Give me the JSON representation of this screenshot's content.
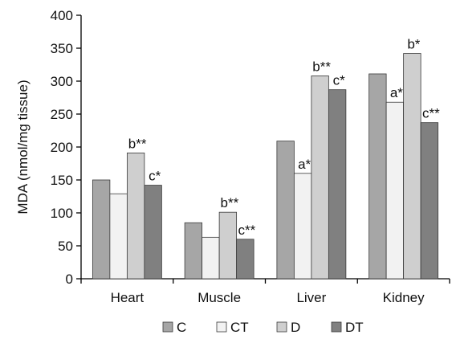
{
  "chart_data": {
    "type": "bar",
    "title": "",
    "xlabel": "",
    "ylabel": "MDA (nmol/mg tissue)",
    "ylim": [
      0,
      400
    ],
    "yticks": [
      0,
      50,
      100,
      150,
      200,
      250,
      300,
      350,
      400
    ],
    "grid": false,
    "legend_position": "bottom",
    "categories": [
      "Heart",
      "Muscle",
      "Liver",
      "Kidney"
    ],
    "series": [
      {
        "name": "C",
        "color": "#a6a6a6",
        "values": [
          150,
          85,
          209,
          311
        ],
        "annotations": [
          "",
          "",
          "",
          ""
        ]
      },
      {
        "name": "CT",
        "color": "#f2f2f2",
        "values": [
          129,
          63,
          160,
          268
        ],
        "annotations": [
          "",
          "",
          "a*",
          "a*"
        ]
      },
      {
        "name": "D",
        "color": "#cfcfcf",
        "values": [
          191,
          101,
          308,
          342
        ],
        "annotations": [
          "b**",
          "b**",
          "b**",
          "b*"
        ]
      },
      {
        "name": "DT",
        "color": "#808080",
        "values": [
          142,
          60,
          287,
          237
        ],
        "annotations": [
          "c*",
          "c**",
          "c*",
          "c**"
        ]
      }
    ]
  }
}
